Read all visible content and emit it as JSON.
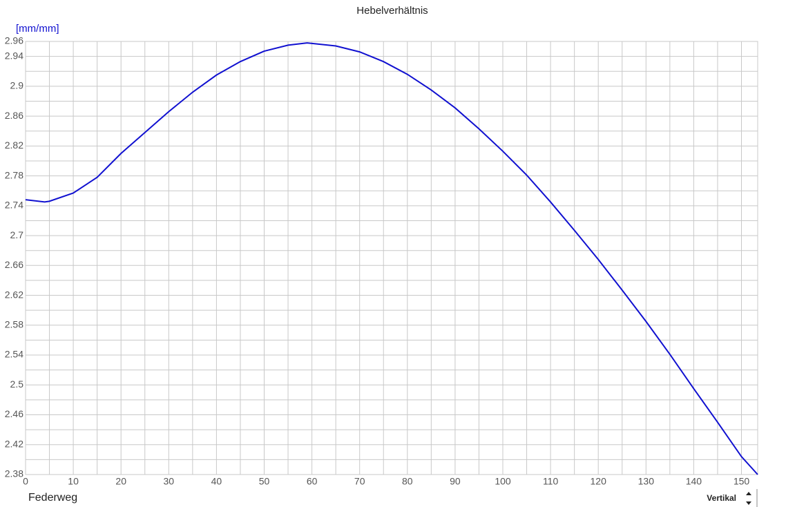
{
  "chart_data": {
    "type": "line",
    "title": "Hebelverhältnis",
    "y_label": "[mm/mm]",
    "x_label": "Federweg",
    "mode": "Vertikal",
    "x": [
      0,
      4,
      5,
      10,
      15,
      20,
      25,
      30,
      35,
      40,
      45,
      50,
      55,
      59,
      65,
      70,
      75,
      80,
      85,
      90,
      95,
      100,
      105,
      110,
      115,
      120,
      125,
      130,
      135,
      140,
      145,
      150,
      153.4
    ],
    "series": [
      {
        "name": "Hebelverhältnis",
        "color": "#1010d0",
        "values": [
          2.748,
          2.745,
          2.746,
          2.757,
          2.778,
          2.81,
          2.838,
          2.866,
          2.892,
          2.915,
          2.933,
          2.947,
          2.955,
          2.958,
          2.954,
          2.946,
          2.933,
          2.916,
          2.895,
          2.871,
          2.843,
          2.813,
          2.781,
          2.745,
          2.707,
          2.668,
          2.627,
          2.585,
          2.541,
          2.495,
          2.45,
          2.404,
          2.38
        ]
      }
    ],
    "xlim": [
      0,
      153.4
    ],
    "ylim": [
      2.38,
      2.96
    ],
    "xticks": [
      0,
      10,
      20,
      30,
      40,
      50,
      60,
      70,
      80,
      90,
      100,
      110,
      120,
      130,
      140,
      150
    ],
    "yticks": [
      2.38,
      2.42,
      2.46,
      {
        "value": 2.5,
        "label": "2.5"
      },
      2.54,
      2.58,
      2.62,
      2.66,
      {
        "value": 2.7,
        "label": "2.7"
      },
      2.74,
      2.78,
      2.82,
      2.86,
      {
        "value": 2.9,
        "label": "2.9"
      },
      2.94,
      2.96
    ],
    "x_minor_grid": [
      5,
      15,
      25,
      35,
      45,
      55,
      65,
      75,
      85,
      95,
      105,
      115,
      125,
      135,
      145
    ],
    "y_minor_grid": [
      2.4,
      2.44,
      2.48,
      2.52,
      2.56,
      2.6,
      2.64,
      2.68,
      2.72,
      2.76,
      2.8,
      2.84,
      2.88,
      2.92
    ],
    "grid": true
  }
}
